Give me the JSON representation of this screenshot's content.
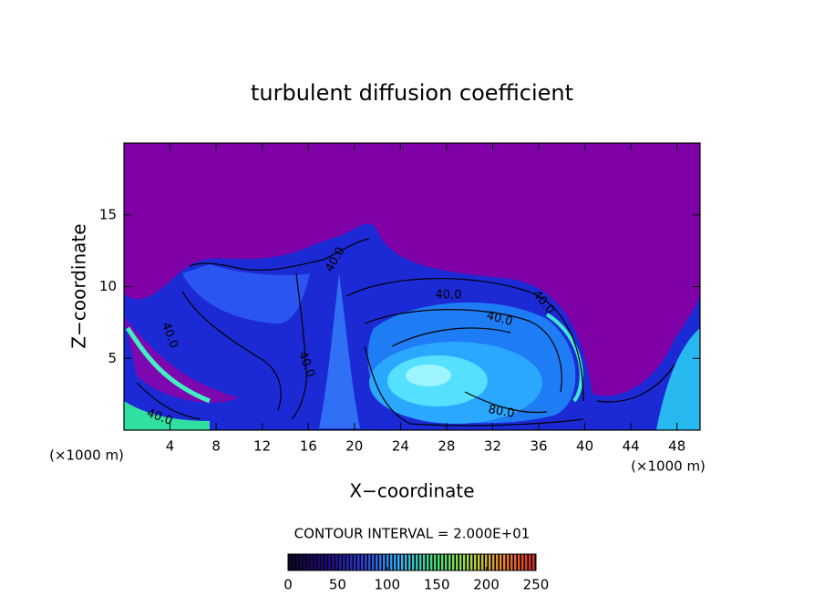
{
  "chart_data": {
    "type": "contour",
    "title": "turbulent diffusion coefficient",
    "x_label": "X−coordinate",
    "y_label": "Z−coordinate",
    "x_unit_left": "(×1000 m)",
    "x_unit_right": "(×1000 m)",
    "xlim": [
      0,
      50
    ],
    "xticks": [
      4,
      8,
      12,
      16,
      20,
      24,
      28,
      32,
      36,
      40,
      44,
      48
    ],
    "ylim": [
      0,
      20
    ],
    "yticks": [
      5,
      10,
      15
    ],
    "background_color": "#7f00a6",
    "contour_interval_text": "CONTOUR INTERVAL = 2.000E+01",
    "contour_labels": [
      "40.0",
      "40.0",
      "40.0",
      "40.0",
      "40.0",
      "40.0",
      "40.0",
      "80.0"
    ],
    "colorbar": {
      "lim": [
        0,
        250
      ],
      "ticks": [
        0,
        50,
        100,
        150,
        200,
        250
      ]
    }
  }
}
